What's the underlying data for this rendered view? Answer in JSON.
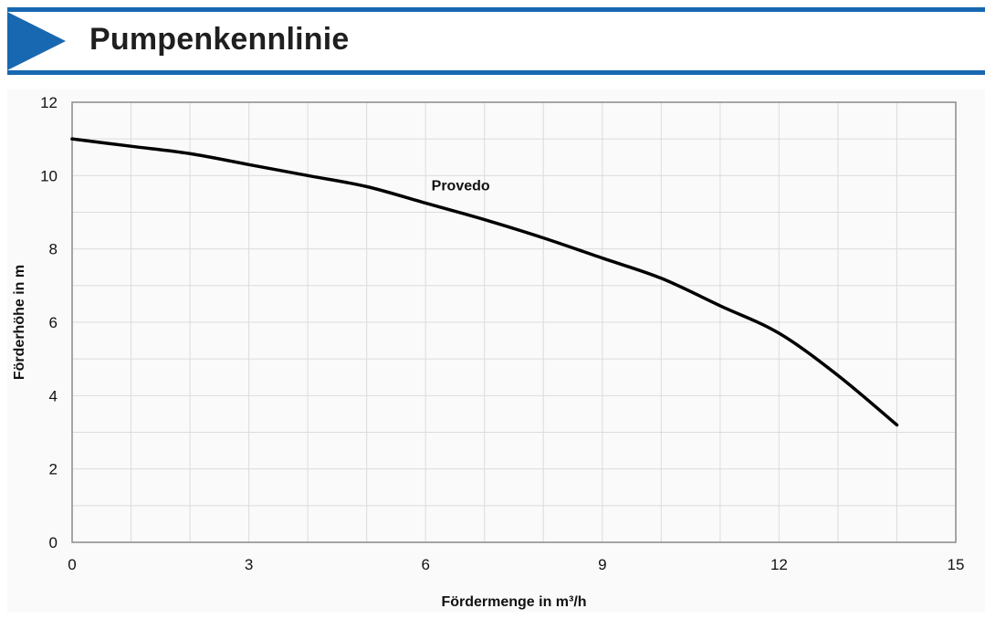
{
  "header": {
    "title": "Pumpenkennlinie",
    "accent_color": "#1768b1",
    "arrow_icon": "play-triangle-icon"
  },
  "chart_data": {
    "type": "line",
    "title": "Pumpenkennlinie",
    "xlabel": "Fördermenge in m³/h",
    "ylabel": "Förderhöhe in m",
    "xlim": [
      0,
      15
    ],
    "ylim": [
      0,
      12
    ],
    "x_ticks": [
      0,
      3,
      6,
      9,
      12,
      15
    ],
    "y_ticks": [
      0,
      2,
      4,
      6,
      8,
      10,
      12
    ],
    "x_tick_labels": [
      "0",
      "3",
      "6",
      "9",
      "12",
      "15"
    ],
    "y_tick_labels": [
      "0",
      "2",
      "4",
      "6",
      "8",
      "10",
      "12"
    ],
    "x_minor_step": 1,
    "y_minor_step": 1,
    "grid": true,
    "series": [
      {
        "name": "Provedo",
        "color": "#000000",
        "x": [
          0,
          1,
          2,
          3,
          4,
          5,
          6,
          7,
          8,
          9,
          10,
          11,
          12,
          13,
          14
        ],
        "y": [
          11.0,
          10.8,
          10.6,
          10.3,
          10.0,
          9.7,
          9.25,
          8.8,
          8.3,
          7.75,
          7.2,
          6.45,
          5.7,
          4.55,
          3.2
        ]
      }
    ],
    "annotations": [
      {
        "text": "Provedo",
        "x": 6.1,
        "y": 9.6
      }
    ]
  }
}
